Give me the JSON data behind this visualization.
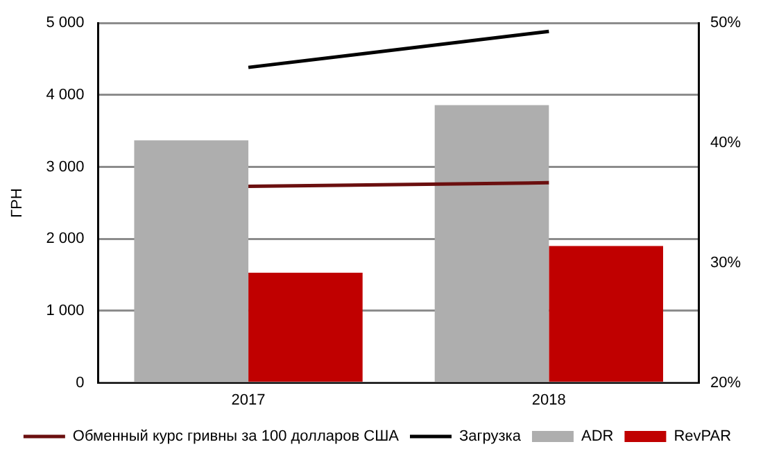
{
  "chart_data": {
    "type": "bar",
    "ylabel": "ГРН",
    "categories": [
      "2017",
      "2018"
    ],
    "series": [
      {
        "name": "ADR",
        "color": "#aeaeae",
        "values": [
          3370,
          3860
        ]
      },
      {
        "name": "RevPAR",
        "color": "#c00000",
        "values": [
          1530,
          1900
        ]
      },
      {
        "name": "Обменный курс гривны за 100 долларов США",
        "type": "line",
        "color": "#6b0f0f",
        "values": [
          2730,
          2780
        ]
      },
      {
        "name": "Загрузка",
        "type": "line",
        "axis": "y2",
        "color": "#000000",
        "values": [
          46.3,
          49.3
        ]
      }
    ],
    "ylim": [
      0,
      5000
    ],
    "yticks": [
      {
        "value": 0,
        "label": "0"
      },
      {
        "value": 1000,
        "label": "1 000"
      },
      {
        "value": 2000,
        "label": "2 000"
      },
      {
        "value": 3000,
        "label": "3 000"
      },
      {
        "value": 4000,
        "label": "4 000"
      },
      {
        "value": 5000,
        "label": "5 000"
      }
    ],
    "y2lim": [
      20,
      50
    ],
    "y2ticks": [
      {
        "value": 20,
        "label": "20%"
      },
      {
        "value": 30,
        "label": "30%"
      },
      {
        "value": 40,
        "label": "40%"
      },
      {
        "value": 50,
        "label": "50%"
      }
    ],
    "grid": "y",
    "legend": "bottom",
    "marker": "none"
  }
}
